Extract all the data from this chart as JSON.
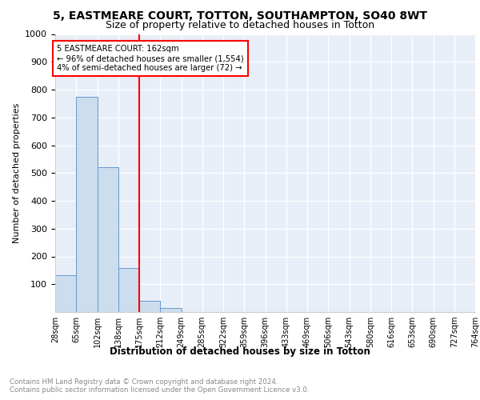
{
  "title1": "5, EASTMEARE COURT, TOTTON, SOUTHAMPTON, SO40 8WT",
  "title2": "Size of property relative to detached houses in Totton",
  "xlabel": "Distribution of detached houses by size in Totton",
  "ylabel": "Number of detached properties",
  "bins": [
    "28sqm",
    "65sqm",
    "102sqm",
    "138sqm",
    "175sqm",
    "212sqm",
    "249sqm",
    "285sqm",
    "322sqm",
    "359sqm",
    "396sqm",
    "433sqm",
    "469sqm",
    "506sqm",
    "543sqm",
    "580sqm",
    "616sqm",
    "653sqm",
    "690sqm",
    "727sqm",
    "764sqm"
  ],
  "values": [
    133,
    775,
    522,
    158,
    40,
    14,
    0,
    0,
    0,
    0,
    0,
    0,
    0,
    0,
    0,
    0,
    0,
    0,
    0,
    0
  ],
  "bar_color": "#ccdded",
  "bar_edge_color": "#6699cc",
  "annotation_title": "5 EASTMEARE COURT: 162sqm",
  "annotation_line1": "← 96% of detached houses are smaller (1,554)",
  "annotation_line2": "4% of semi-detached houses are larger (72) →",
  "annot_box_color": "white",
  "annot_box_edge": "red",
  "vline_color": "red",
  "ylim": [
    0,
    1000
  ],
  "yticks": [
    0,
    100,
    200,
    300,
    400,
    500,
    600,
    700,
    800,
    900,
    1000
  ],
  "plot_bg_color": "#e8eef8",
  "footnote": "Contains HM Land Registry data © Crown copyright and database right 2024.\nContains public sector information licensed under the Open Government Licence v3.0.",
  "footnote_color": "#888888",
  "title1_fontsize": 10,
  "title2_fontsize": 9
}
